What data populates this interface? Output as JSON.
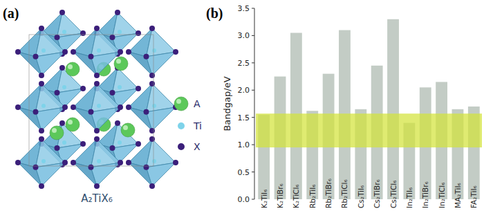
{
  "panel_labels": [
    "(a)",
    "(b)"
  ],
  "structure": {
    "formula": "A₂TiX₆",
    "legend": [
      {
        "label": "A",
        "color": "#5cc85a"
      },
      {
        "label": "Ti",
        "color": "#7ed3ea"
      },
      {
        "label": "X",
        "color": "#3b1f7a"
      }
    ]
  },
  "chart_data": {
    "type": "bar",
    "categories": [
      "K₂TiI₆",
      "K₂TiBr₆",
      "K₂TiCl₆",
      "Rb₂TiI₆",
      "Rb₂TiBr₆",
      "Rb₂TiCl₆",
      "Cs₂TiI₆",
      "Cs₂TiBr₆",
      "Cs₂TiCl₆",
      "In₂TiI₆",
      "In₂TiBr₆",
      "In₂TiCl₆",
      "MA₂TiI₆",
      "FA₂TiI₆"
    ],
    "values": [
      1.55,
      2.25,
      3.05,
      1.62,
      2.3,
      3.1,
      1.65,
      2.45,
      3.3,
      1.4,
      2.05,
      2.15,
      1.65,
      1.7
    ],
    "color": "#c3ccc5",
    "band": [
      0.95,
      1.57
    ],
    "y_label": "Bandgap/eV",
    "ylim": [
      0,
      3.5
    ],
    "yticks": [
      {
        "value": 0,
        "label": "0.0"
      },
      0.5,
      {
        "value": 1,
        "label": "1.0"
      },
      1.5,
      {
        "value": 2,
        "label": "2.0"
      },
      2.5,
      {
        "value": 3,
        "label": "3.0"
      },
      3.5
    ]
  }
}
